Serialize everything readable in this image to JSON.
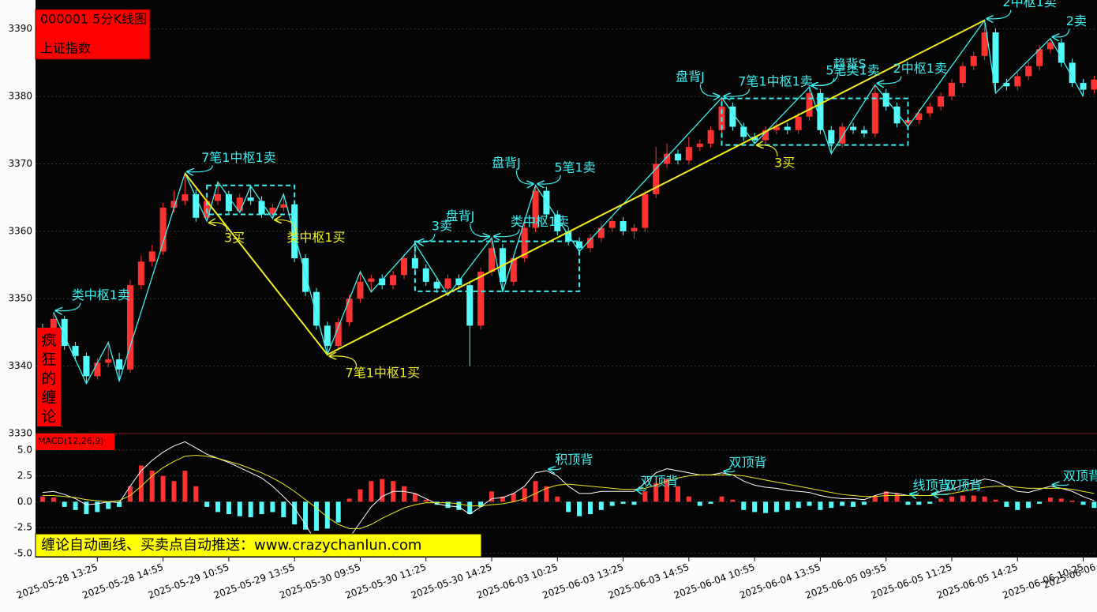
{
  "chart_data": {
    "type": "candlestick",
    "title": "000001 5分K线图",
    "subtitle": "上证指数",
    "side_label": [
      "疯",
      "狂",
      "的",
      "缠",
      "论"
    ],
    "banner": "缠论自动画线、买卖点自动推送：www.crazychanlun.com",
    "x_labels": [
      "2025-05-28 13:25",
      "2025-05-28 14:55",
      "2025-05-29 10:55",
      "2025-05-29 13:55",
      "2025-05-30 09:55",
      "2025-05-30 11:25",
      "2025-05-30 14:25",
      "2025-06-03 10:25",
      "2025-06-03 13:25",
      "2025-06-03 14:55",
      "2025-06-04 10:55",
      "2025-06-04 13:55",
      "2025-06-05 09:55",
      "2025-06-05 11:25",
      "2025-06-05 14:25",
      "2025-06-06 10:25",
      "2025-06-06"
    ],
    "ylim": [
      3330,
      3394.3
    ],
    "yticks": [
      3330,
      3340,
      3350,
      3360,
      3370,
      3380,
      3390
    ],
    "grid": true,
    "up_color": "#ff3232",
    "down_color": "#54fcfc",
    "open": [
      3345.5,
      3344.5,
      3347.0,
      3343.0,
      3341.5,
      3338.5,
      3340.5,
      3341.0,
      3339.5,
      3352.0,
      3355.5,
      3357.0,
      3363.5,
      3364.5,
      3365.5,
      3362.0,
      3364.5,
      3365.5,
      3363.0,
      3365.0,
      3364.5,
      3362.5,
      3363.5,
      3364.0,
      3356.0,
      3351.0,
      3346.0,
      3343.0,
      3346.5,
      3350.0,
      3352.5,
      3353.0,
      3352.0,
      3353.5,
      3356.0,
      3354.5,
      3352.5,
      3351.5,
      3353.0,
      3352.0,
      3346.0,
      3354.0,
      3357.5,
      3352.5,
      3356.0,
      3360.5,
      3366.0,
      3362.5,
      3360.0,
      3358.5,
      3357.5,
      3359.0,
      3360.5,
      3361.5,
      3360.0,
      3360.5,
      3365.5,
      3370.0,
      3371.5,
      3370.5,
      3372.5,
      3373.0,
      3375.0,
      3378.5,
      3375.5,
      3374.0,
      3373.5,
      3375.0,
      3375.5,
      3375.0,
      3377.0,
      3380.5,
      3375.0,
      3373.0,
      3375.5,
      3375.0,
      3374.5,
      3380.5,
      3378.5,
      3376.0,
      3376.5,
      3377.5,
      3378.5,
      3380.0,
      3382.0,
      3384.5,
      3386.0,
      3389.5,
      3382.0,
      3381.5,
      3383.0,
      3384.5,
      3387.0,
      3388.0,
      3385.0,
      3382.0,
      3381.0
    ],
    "high": [
      3346.3,
      3348.0,
      3347.5,
      3343.6,
      3342.0,
      3341.2,
      3343.5,
      3342.0,
      3352.8,
      3356.4,
      3358.0,
      3364.2,
      3366.0,
      3368.6,
      3366.2,
      3365.2,
      3367.3,
      3366.0,
      3365.6,
      3366.7,
      3365.2,
      3364.1,
      3365.5,
      3364.6,
      3356.6,
      3351.6,
      3346.6,
      3347.1,
      3350.6,
      3354.0,
      3353.6,
      3353.6,
      3354.1,
      3356.6,
      3358.2,
      3355.1,
      3353.1,
      3353.6,
      3353.6,
      3352.6,
      3354.6,
      3359.0,
      3358.1,
      3356.6,
      3361.1,
      3366.8,
      3366.6,
      3363.1,
      3360.6,
      3359.1,
      3359.6,
      3361.1,
      3362.1,
      3362.1,
      3361.1,
      3366.1,
      3372.5,
      3373.0,
      3372.1,
      3374.0,
      3373.6,
      3375.6,
      3379.8,
      3379.1,
      3376.1,
      3374.6,
      3375.6,
      3376.1,
      3376.1,
      3377.6,
      3381.4,
      3381.1,
      3375.6,
      3376.1,
      3376.1,
      3375.6,
      3381.7,
      3381.1,
      3379.1,
      3377.1,
      3378.1,
      3379.1,
      3380.6,
      3382.6,
      3385.1,
      3386.6,
      3391.3,
      3390.1,
      3382.6,
      3383.6,
      3385.1,
      3387.6,
      3388.6,
      3388.6,
      3385.6,
      3382.6,
      3383.1
    ],
    "low": [
      3343.8,
      3344.0,
      3342.4,
      3340.8,
      3337.4,
      3338.0,
      3339.8,
      3337.8,
      3339.0,
      3351.4,
      3354.8,
      3356.5,
      3362.8,
      3363.9,
      3361.4,
      3361.5,
      3363.9,
      3362.4,
      3362.8,
      3363.9,
      3362.0,
      3361.9,
      3362.9,
      3355.4,
      3350.4,
      3345.4,
      3341.7,
      3342.4,
      3345.9,
      3349.4,
      3351.0,
      3351.4,
      3351.4,
      3352.9,
      3353.9,
      3351.9,
      3350.9,
      3350.5,
      3351.4,
      3340.0,
      3345.4,
      3353.4,
      3351.0,
      3351.9,
      3355.4,
      3359.9,
      3361.9,
      3359.4,
      3357.9,
      3357.0,
      3356.9,
      3358.4,
      3359.9,
      3359.4,
      3358.9,
      3359.9,
      3364.9,
      3369.4,
      3369.9,
      3369.9,
      3371.9,
      3372.4,
      3374.4,
      3374.9,
      3373.4,
      3373.0,
      3372.9,
      3374.4,
      3374.4,
      3374.4,
      3376.4,
      3374.4,
      3371.5,
      3372.4,
      3374.4,
      3373.9,
      3373.9,
      3377.9,
      3375.4,
      3375.5,
      3375.9,
      3376.9,
      3377.9,
      3379.4,
      3381.4,
      3383.9,
      3385.4,
      3380.5,
      3380.9,
      3380.9,
      3382.4,
      3383.9,
      3386.4,
      3384.4,
      3381.4,
      3380.0,
      3380.4
    ],
    "close": [
      3344.5,
      3347.0,
      3343.0,
      3341.5,
      3338.5,
      3340.5,
      3341.0,
      3339.5,
      3352.0,
      3355.5,
      3357.0,
      3363.5,
      3364.5,
      3365.5,
      3362.0,
      3364.5,
      3365.5,
      3363.0,
      3365.0,
      3364.5,
      3362.5,
      3363.5,
      3364.0,
      3356.0,
      3351.0,
      3346.0,
      3343.0,
      3346.5,
      3350.0,
      3352.5,
      3353.0,
      3352.0,
      3353.5,
      3356.0,
      3354.5,
      3352.5,
      3351.5,
      3353.0,
      3352.0,
      3346.0,
      3354.0,
      3357.5,
      3352.5,
      3356.0,
      3360.5,
      3366.0,
      3362.5,
      3360.0,
      3358.5,
      3357.5,
      3359.0,
      3360.5,
      3361.5,
      3360.0,
      3360.5,
      3365.5,
      3370.0,
      3371.5,
      3370.5,
      3372.5,
      3373.0,
      3375.0,
      3378.5,
      3375.5,
      3374.0,
      3373.5,
      3375.0,
      3375.5,
      3375.0,
      3377.0,
      3380.5,
      3375.0,
      3373.0,
      3375.5,
      3375.0,
      3374.5,
      3380.5,
      3378.5,
      3376.0,
      3376.5,
      3377.5,
      3378.5,
      3380.0,
      3382.0,
      3384.5,
      3386.0,
      3389.5,
      3382.0,
      3381.5,
      3383.0,
      3384.5,
      3387.0,
      3388.0,
      3385.0,
      3382.0,
      3381.0,
      3382.5
    ],
    "strokes": {
      "color": "#3cf0f0",
      "x": [
        1,
        4,
        6,
        7,
        13,
        15,
        16,
        18,
        19,
        21,
        22,
        26,
        29,
        30,
        34,
        37,
        41,
        42,
        45,
        49,
        62,
        65,
        70,
        72,
        76,
        79,
        86,
        87,
        92,
        95
      ],
      "y": [
        3348.0,
        3337.4,
        3343.5,
        3337.8,
        3368.6,
        3361.5,
        3367.3,
        3362.8,
        3366.7,
        3361.9,
        3365.5,
        3341.7,
        3354.0,
        3351.0,
        3358.2,
        3350.5,
        3359.0,
        3351.0,
        3366.8,
        3357.0,
        3379.8,
        3373.0,
        3381.4,
        3371.5,
        3381.7,
        3375.5,
        3391.3,
        3380.5,
        3388.6,
        3380.0
      ]
    },
    "segments": {
      "color": "#f0f020",
      "x": [
        13,
        26,
        86
      ],
      "y": [
        3368.6,
        3341.7,
        3391.3
      ]
    },
    "centers": [
      {
        "start": 15,
        "end": 23,
        "high": 3366.8,
        "low": 3362.5
      },
      {
        "start": 34,
        "end": 49,
        "high": 3358.5,
        "low": 3351.1
      },
      {
        "start": 62,
        "end": 79,
        "high": 3379.7,
        "low": 3372.8
      }
    ],
    "annotations": [
      {
        "text": "类中枢1卖",
        "x": 1,
        "y": 3348.0,
        "color": "#3cf0f0"
      },
      {
        "text": "7笔1中枢1卖",
        "x": 13,
        "y": 3368.6,
        "color": "#3cf0f0"
      },
      {
        "text": "3买",
        "x": 15,
        "y": 3361.5,
        "color": "#f0f020"
      },
      {
        "text": "类中枢1买",
        "x": 21,
        "y": 3361.9,
        "color": "#f0f020"
      },
      {
        "text": "7笔1中枢1买",
        "x": 26,
        "y": 3341.7,
        "color": "#f0f020"
      },
      {
        "text": "3卖",
        "x": 34,
        "y": 3358.2,
        "color": "#3cf0f0"
      },
      {
        "text": "盘背J",
        "x": 41,
        "y": 3359.0,
        "color": "#3cf0f0"
      },
      {
        "text": "盘背J",
        "x": 45,
        "y": 3366.8,
        "color": "#3cf0f0"
      },
      {
        "text": "5笔1卖",
        "x": 45,
        "y": 3366.8,
        "color": "#3cf0f0"
      },
      {
        "text": "类中枢1卖",
        "x": 41,
        "y": 3359.0,
        "color": "#3cf0f0"
      },
      {
        "text": "盘背J",
        "x": 62,
        "y": 3379.8,
        "color": "#3cf0f0"
      },
      {
        "text": "7笔1中枢1卖",
        "x": 62,
        "y": 3379.8,
        "color": "#3cf0f0"
      },
      {
        "text": "趋背S",
        "x": 70,
        "y": 3381.4,
        "color": "#3cf0f0"
      },
      {
        "text": "5笔类1卖",
        "x": 70,
        "y": 3381.4,
        "color": "#3cf0f0"
      },
      {
        "text": "2中枢1卖",
        "x": 76,
        "y": 3381.7,
        "color": "#3cf0f0"
      },
      {
        "text": "3买",
        "x": 65,
        "y": 3373.0,
        "color": "#f0f020"
      },
      {
        "text": "2中枢1卖",
        "x": 86,
        "y": 3391.3,
        "color": "#3cf0f0"
      },
      {
        "text": "2卖",
        "x": 92,
        "y": 3388.6,
        "color": "#3cf0f0"
      }
    ],
    "macd": {
      "label": "MACD(12,26,9)",
      "ylim": [
        -5.4,
        6.6
      ],
      "yticks": [
        {
          "value": -5,
          "label": "-5.0"
        },
        {
          "value": -2.5,
          "label": "-2.5"
        },
        {
          "value": 0,
          "label": "0.0"
        },
        {
          "value": 2.5,
          "label": "2.5"
        },
        {
          "value": 5,
          "label": "5.0"
        }
      ],
      "hist": [
        0.5,
        0.4,
        -0.5,
        -0.8,
        -1.2,
        -1.0,
        -0.7,
        -0.5,
        1.5,
        3.5,
        3.0,
        2.5,
        2.0,
        3.0,
        1.5,
        -0.5,
        -1.0,
        -1.2,
        -1.4,
        -1.5,
        -1.2,
        -1.0,
        -1.5,
        -2.2,
        -2.7,
        -2.8,
        -2.6,
        -2.0,
        0.3,
        1.2,
        2.0,
        2.2,
        2.0,
        1.5,
        0.8,
        0.2,
        -0.3,
        -0.6,
        -0.8,
        -1.2,
        -0.5,
        1.0,
        0.5,
        0.8,
        1.3,
        2.0,
        1.5,
        0.5,
        -1.0,
        -1.4,
        -1.2,
        -0.8,
        -0.4,
        -0.2,
        -0.3,
        1.0,
        1.8,
        2.2,
        1.5,
        0.5,
        -0.4,
        -0.2,
        0.5,
        0.2,
        -0.8,
        -1.0,
        -1.1,
        -1.0,
        -0.8,
        -0.6,
        -0.4,
        -0.8,
        -0.6,
        -0.4,
        -0.5,
        -0.3,
        0.5,
        1.0,
        0.8,
        -0.3,
        -0.3,
        -0.2,
        0.3,
        0.5,
        0.6,
        0.6,
        0.5,
        0.2,
        -0.5,
        -0.8,
        -0.6,
        -0.2,
        0.4,
        0.3,
        0.1,
        -0.3,
        -0.6
      ],
      "dif": [
        0.9,
        1.0,
        0.7,
        0.3,
        -0.3,
        -0.2,
        0.0,
        -0.1,
        1.5,
        3.0,
        4.0,
        4.8,
        5.4,
        5.8,
        5.2,
        4.6,
        4.2,
        3.8,
        3.3,
        2.8,
        2.3,
        1.5,
        0.5,
        -0.6,
        -2.2,
        -4.0,
        -5.0,
        -4.5,
        -3.5,
        -2.0,
        -0.5,
        0.5,
        1.0,
        1.0,
        0.8,
        0.3,
        -0.2,
        -0.4,
        -0.5,
        -1.2,
        -0.5,
        0.3,
        0.4,
        0.8,
        1.5,
        2.8,
        3.0,
        2.5,
        1.5,
        0.8,
        0.8,
        1.0,
        1.0,
        1.0,
        1.0,
        1.8,
        2.8,
        3.2,
        3.0,
        2.8,
        2.6,
        2.6,
        2.8,
        2.6,
        2.0,
        1.6,
        1.4,
        1.3,
        1.1,
        1.0,
        0.9,
        0.6,
        0.4,
        0.3,
        0.3,
        0.2,
        0.6,
        0.9,
        0.8,
        0.6,
        0.6,
        0.6,
        1.0,
        1.2,
        1.6,
        1.8,
        2.2,
        2.0,
        1.5,
        1.0,
        0.9,
        1.2,
        1.5,
        1.3,
        1.0,
        0.5,
        0.1
      ],
      "dea": [
        0.6,
        0.6,
        0.5,
        0.4,
        0.2,
        0.1,
        0.0,
        0.1,
        0.6,
        1.5,
        2.5,
        3.3,
        3.9,
        4.4,
        4.5,
        4.4,
        4.2,
        3.9,
        3.6,
        3.2,
        2.8,
        2.3,
        1.7,
        1.0,
        0.2,
        -0.6,
        -1.5,
        -2.2,
        -2.6,
        -2.6,
        -2.2,
        -1.6,
        -1.1,
        -0.6,
        -0.3,
        -0.1,
        -0.1,
        -0.1,
        -0.2,
        -0.4,
        -0.4,
        -0.3,
        -0.2,
        0.0,
        0.3,
        0.8,
        1.3,
        1.6,
        1.7,
        1.6,
        1.5,
        1.4,
        1.3,
        1.2,
        1.2,
        1.3,
        1.6,
        2.0,
        2.3,
        2.5,
        2.6,
        2.6,
        2.6,
        2.6,
        2.5,
        2.3,
        2.1,
        1.9,
        1.7,
        1.5,
        1.3,
        1.1,
        0.9,
        0.7,
        0.6,
        0.5,
        0.5,
        0.6,
        0.6,
        0.6,
        0.6,
        0.6,
        0.7,
        0.8,
        1.0,
        1.2,
        1.4,
        1.5,
        1.5,
        1.4,
        1.3,
        1.3,
        1.3,
        1.3,
        1.2,
        1.0,
        0.8
      ],
      "dif_color": "#ffffff",
      "dea_color": "#e8e820",
      "annotations": [
        {
          "text": "积顶背",
          "x": 46,
          "y": 3.0,
          "color": "#3cf0f0"
        },
        {
          "text": "双顶背",
          "x": 54,
          "y": 1.0,
          "color": "#3cf0f0"
        },
        {
          "text": "双顶背",
          "x": 62,
          "y": 2.8,
          "color": "#3cf0f0"
        },
        {
          "text": "线顶背",
          "x": 79,
          "y": 0.6,
          "color": "#3cf0f0"
        },
        {
          "text": "双顶背",
          "x": 81,
          "y": 0.6,
          "color": "#3cf0f0"
        },
        {
          "text": "双顶背",
          "x": 92,
          "y": 1.5,
          "color": "#3cf0f0"
        }
      ]
    }
  }
}
